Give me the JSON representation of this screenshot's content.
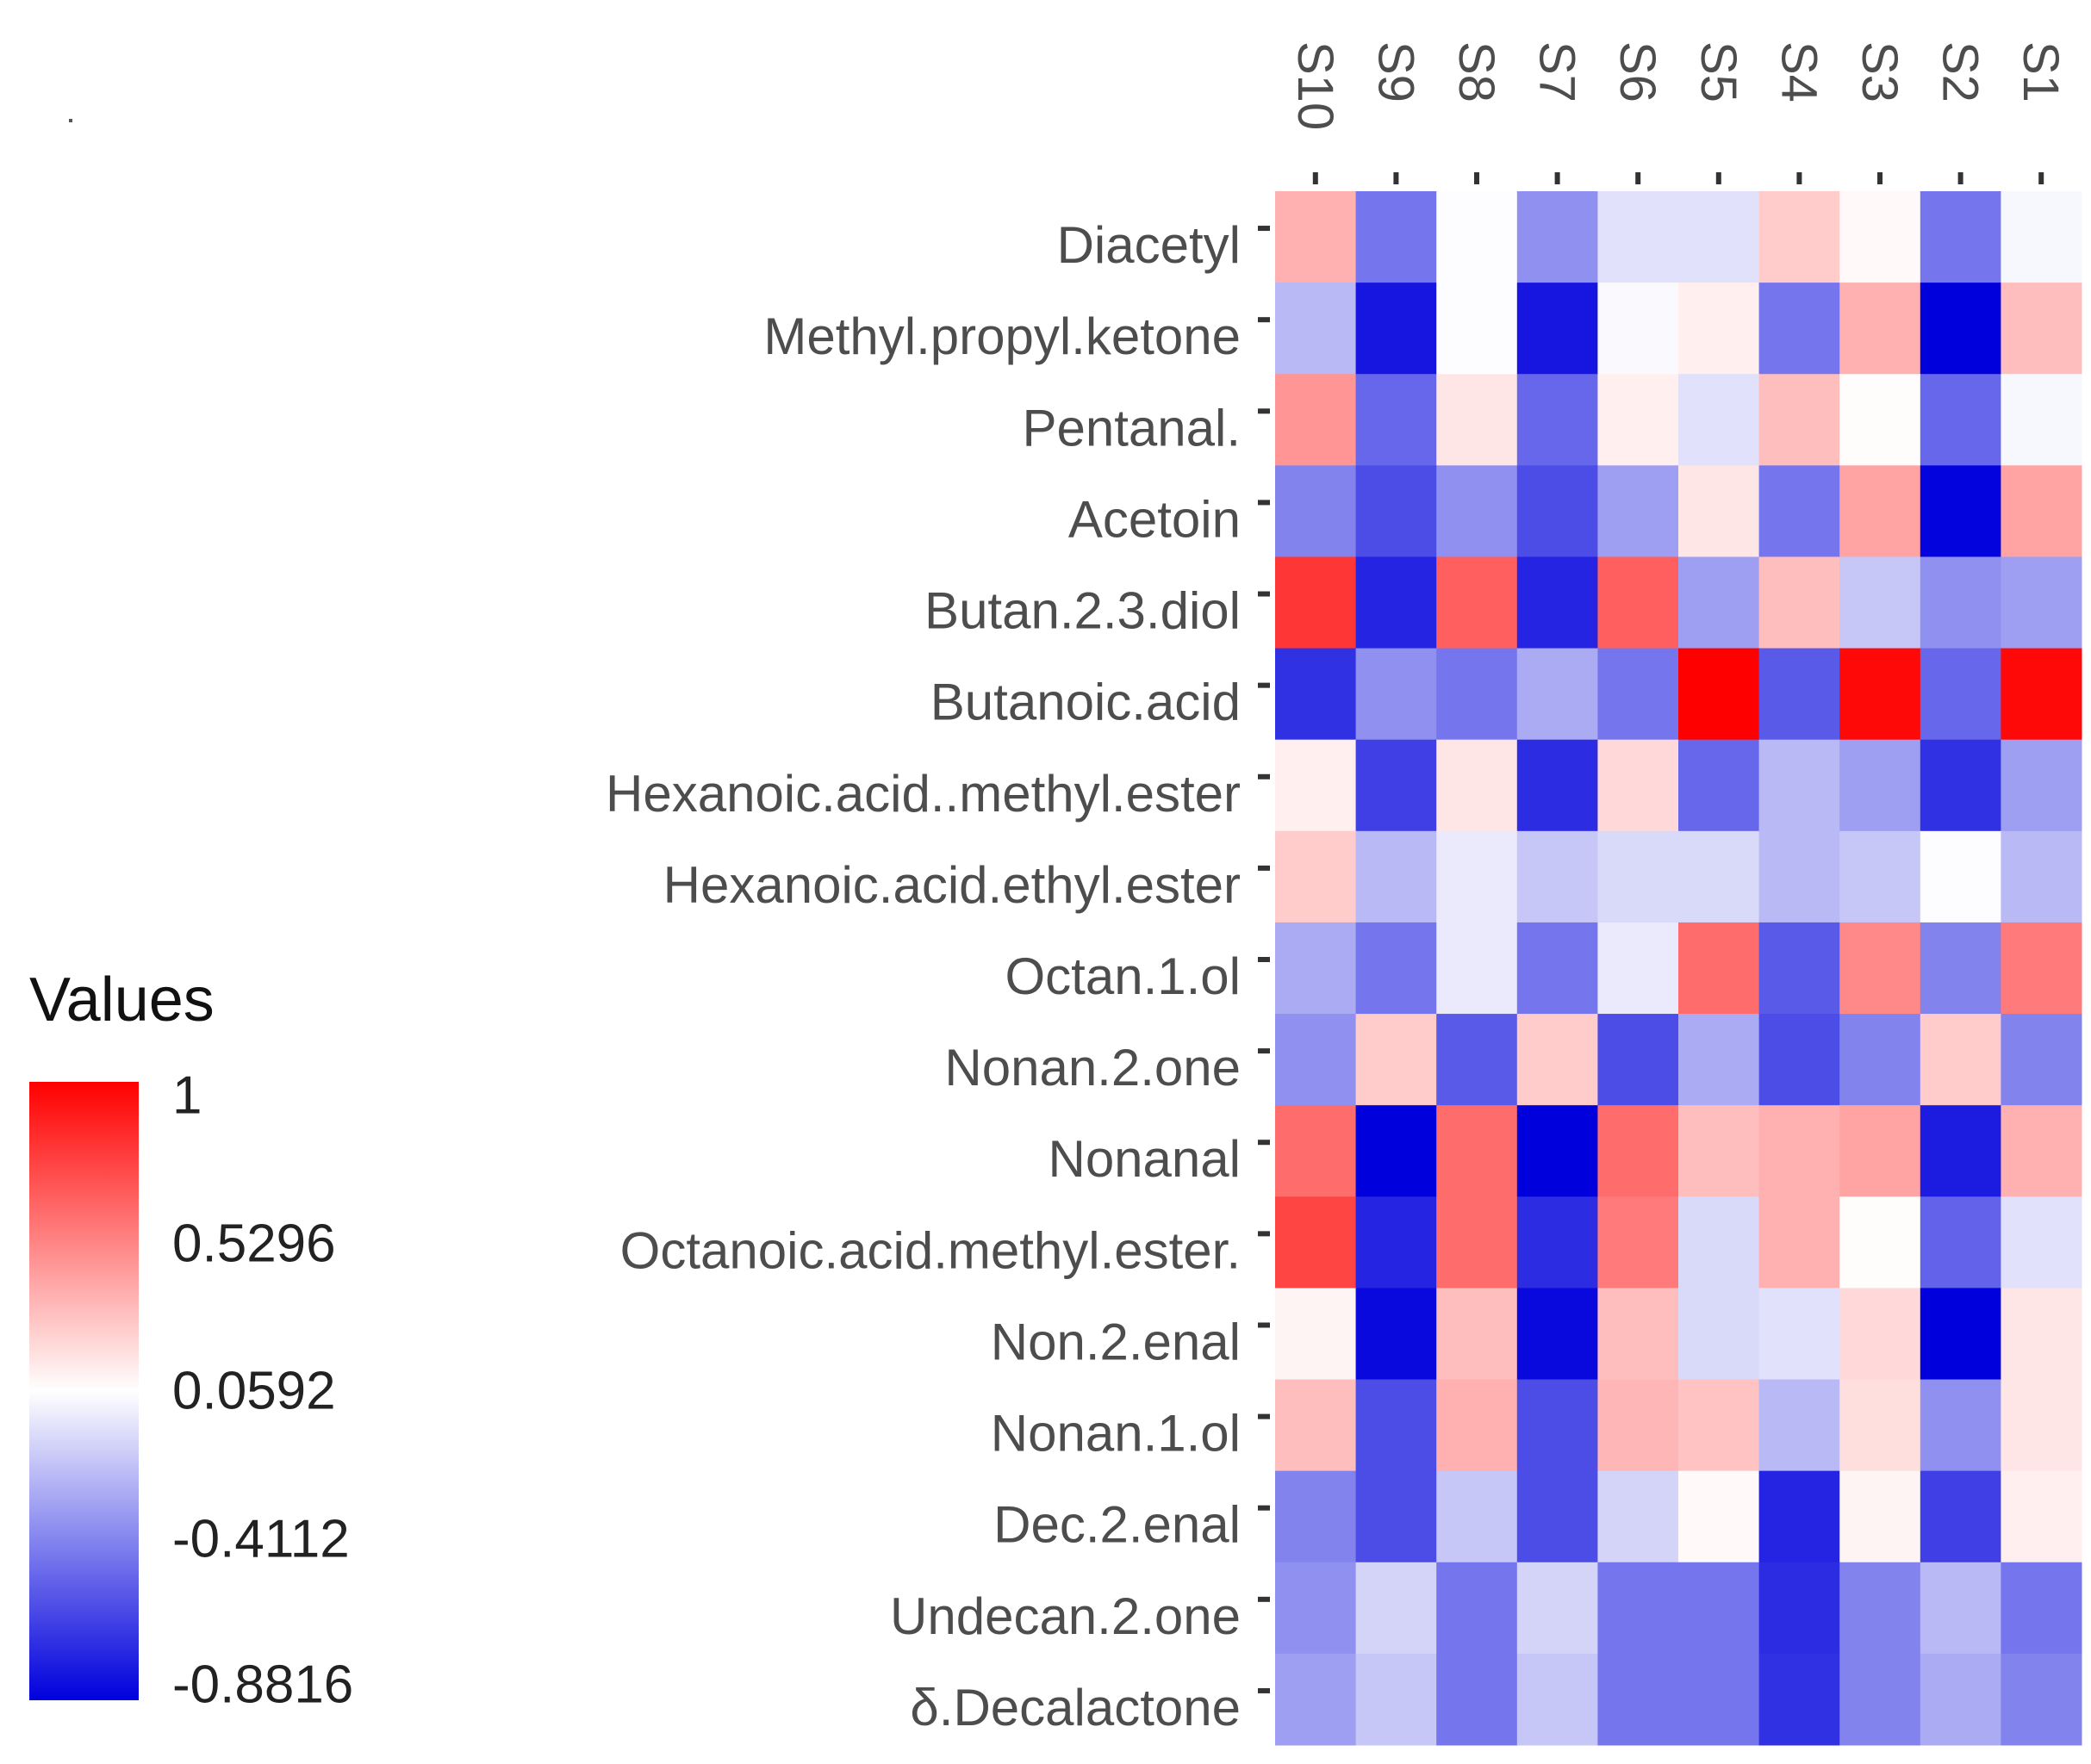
{
  "chart_data": {
    "type": "heatmap",
    "title": "",
    "columns": [
      "S10",
      "S9",
      "S8",
      "S7",
      "S6",
      "S5",
      "S4",
      "S3",
      "S2",
      "S1"
    ],
    "rows": [
      "Diacetyl",
      "Methyl.propyl.ketone",
      "Pentanal.",
      "Acetoin",
      "Butan.2.3.diol",
      "Butanoic.acid",
      "Hexanoic.acid..methyl.ester",
      "Hexanoic.acid.ethyl.ester",
      "Octan.1.ol",
      "Nonan.2.one",
      "Nonanal",
      "Octanoic.acid.methyl.ester.",
      "Non.2.enal",
      "Nonan.1.ol",
      "Dec.2.enal",
      "Undecan.2.one",
      "δ.Decalactone"
    ],
    "values": [
      [
        0.35,
        -0.45,
        0.05,
        -0.35,
        -0.05,
        -0.05,
        0.25,
        0.08,
        -0.45,
        0.03
      ],
      [
        -0.2,
        -0.8,
        0.05,
        -0.8,
        0.04,
        0.12,
        -0.45,
        0.35,
        -0.88,
        0.3
      ],
      [
        0.45,
        -0.5,
        0.15,
        -0.5,
        0.12,
        -0.05,
        0.3,
        0.07,
        -0.5,
        0.03
      ],
      [
        -0.4,
        -0.6,
        -0.35,
        -0.6,
        -0.3,
        0.15,
        -0.45,
        0.4,
        -0.87,
        0.4
      ],
      [
        0.8,
        -0.75,
        0.65,
        -0.75,
        0.65,
        -0.3,
        0.3,
        -0.15,
        -0.35,
        -0.3
      ],
      [
        -0.7,
        -0.35,
        -0.45,
        -0.25,
        -0.45,
        1.0,
        -0.55,
        0.97,
        -0.5,
        0.97
      ],
      [
        0.12,
        -0.65,
        0.15,
        -0.72,
        0.2,
        -0.5,
        -0.2,
        -0.3,
        -0.7,
        -0.3
      ],
      [
        0.25,
        -0.2,
        -0.02,
        -0.15,
        -0.08,
        -0.08,
        -0.2,
        -0.15,
        0.05,
        -0.2
      ],
      [
        -0.25,
        -0.45,
        -0.02,
        -0.45,
        -0.02,
        0.6,
        -0.55,
        0.5,
        -0.4,
        0.55
      ],
      [
        -0.35,
        0.25,
        -0.55,
        0.25,
        -0.6,
        -0.25,
        -0.6,
        -0.4,
        0.25,
        -0.4
      ],
      [
        0.6,
        -0.88,
        0.6,
        -0.88,
        0.6,
        0.3,
        0.35,
        0.4,
        -0.78,
        0.35
      ],
      [
        0.75,
        -0.75,
        0.6,
        -0.72,
        0.55,
        -0.08,
        0.35,
        0.07,
        -0.52,
        -0.05
      ],
      [
        0.1,
        -0.85,
        0.3,
        -0.85,
        0.3,
        -0.08,
        -0.05,
        0.2,
        -0.88,
        0.15
      ],
      [
        0.3,
        -0.6,
        0.35,
        -0.6,
        0.33,
        0.28,
        -0.2,
        0.18,
        -0.35,
        0.15
      ],
      [
        -0.4,
        -0.6,
        -0.15,
        -0.6,
        -0.1,
        0.08,
        -0.75,
        0.1,
        -0.65,
        0.12
      ],
      [
        -0.35,
        -0.1,
        -0.45,
        -0.1,
        -0.45,
        -0.45,
        -0.72,
        -0.4,
        -0.2,
        -0.45
      ],
      [
        -0.3,
        -0.15,
        -0.45,
        -0.15,
        -0.45,
        -0.45,
        -0.7,
        -0.4,
        -0.25,
        -0.4
      ]
    ],
    "legend": {
      "title": "Values",
      "placement": "left",
      "ticks": [
        "1",
        "0.5296",
        "0.0592",
        "-0.4112",
        "-0.8816"
      ],
      "min": -0.8816,
      "mid": 0.0592,
      "max": 1,
      "colors": {
        "low": "#0000dd",
        "mid": "#ffffff",
        "high": "#ff0000"
      }
    },
    "grid": false
  }
}
